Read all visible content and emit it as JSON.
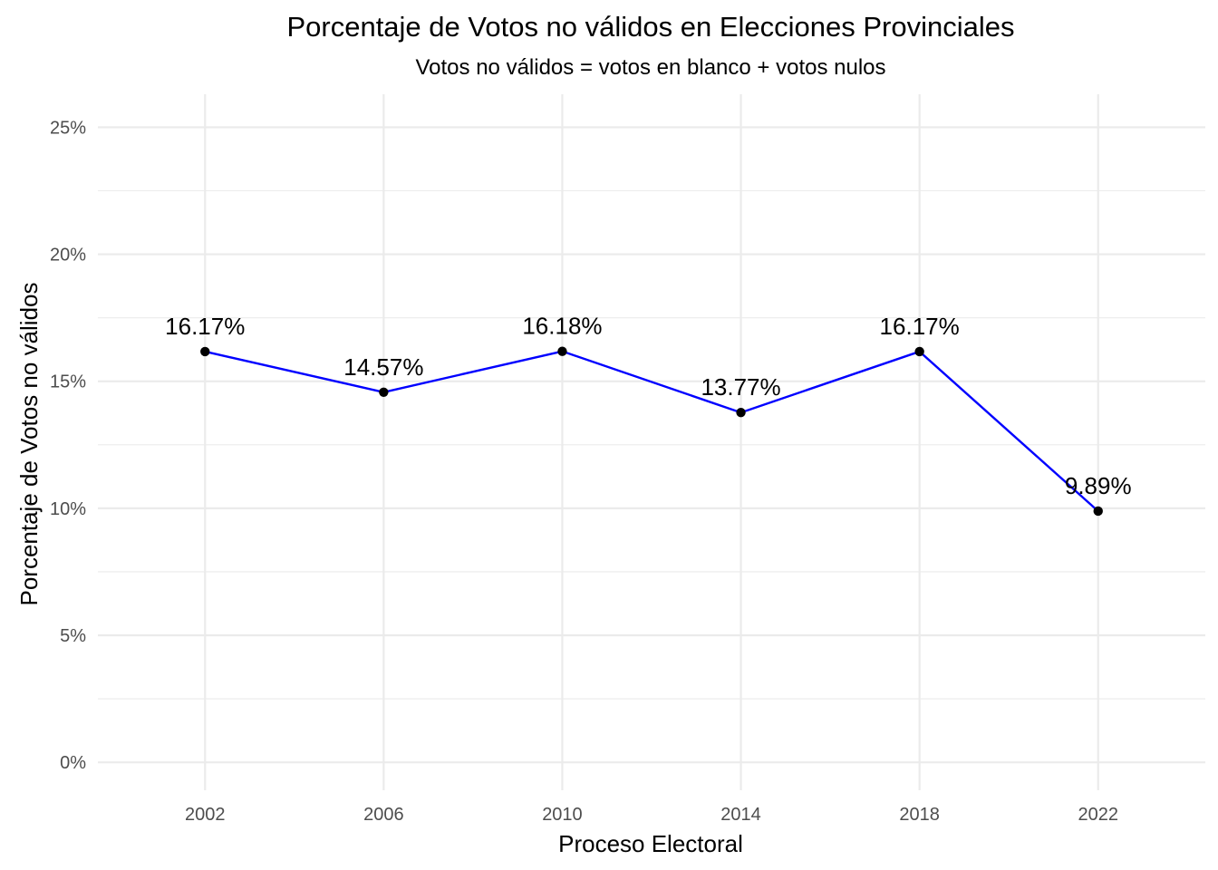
{
  "chart_data": {
    "type": "line",
    "title": "Porcentaje de Votos no válidos en Elecciones Provinciales",
    "subtitle": "Votos no válidos = votos en blanco + votos nulos",
    "xlabel": "Proceso Electoral",
    "ylabel": "Porcentaje de Votos no válidos",
    "x": [
      2002,
      2006,
      2010,
      2014,
      2018,
      2022
    ],
    "series": [
      {
        "values": [
          16.17,
          14.57,
          16.18,
          13.77,
          16.17,
          9.89
        ],
        "labels": [
          "16.17%",
          "14.57%",
          "16.18%",
          "13.77%",
          "16.17%",
          "9.89%"
        ]
      }
    ],
    "xlim": [
      1999.6,
      2024.4
    ],
    "ylim": [
      -1.1,
      26.3
    ],
    "x_ticks": [
      2002,
      2006,
      2010,
      2014,
      2018,
      2022
    ],
    "x_tick_labels": [
      "2002",
      "2006",
      "2010",
      "2014",
      "2018",
      "2022"
    ],
    "y_ticks": [
      0,
      5,
      10,
      15,
      20,
      25
    ],
    "y_tick_labels": [
      "0%",
      "5%",
      "10%",
      "15%",
      "20%",
      "25%"
    ],
    "y_minor_ticks": [
      2.5,
      7.5,
      12.5,
      17.5,
      22.5
    ],
    "grid": true,
    "legend": "none",
    "colors": {
      "line": "#0000ff",
      "point": "#000000",
      "grid": "#ebebeb",
      "tick_text": "#4d4d4d"
    }
  }
}
